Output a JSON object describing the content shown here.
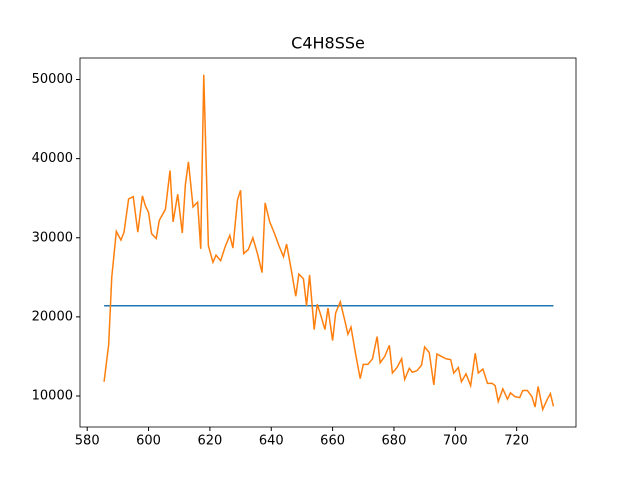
{
  "chart_data": {
    "type": "line",
    "title": "C4H8SSe",
    "xlim": [
      577.65,
      739.35
    ],
    "ylim": [
      6080,
      52720
    ],
    "xticks": [
      580,
      600,
      620,
      640,
      660,
      680,
      700,
      720
    ],
    "yticks": [
      10000,
      20000,
      30000,
      40000,
      50000
    ],
    "series": [
      {
        "color": "#1f77b4",
        "x": [
          585.5,
          732
        ],
        "values": [
          21400,
          21400
        ]
      },
      {
        "color": "#ff7f0e",
        "x": [
          585.5,
          587,
          588,
          589.5,
          591,
          592,
          593.5,
          595,
          596.5,
          598,
          599,
          600,
          601,
          602.5,
          603.5,
          605.5,
          607,
          608,
          609.5,
          611,
          612,
          613,
          614.5,
          616,
          617,
          618,
          619.5,
          621,
          622,
          623.5,
          625,
          626.5,
          627.5,
          629,
          630,
          631,
          632.5,
          634,
          635.5,
          637,
          638,
          639.5,
          641,
          642.5,
          644,
          645,
          646.5,
          648,
          649,
          650.5,
          651.5,
          652.5,
          654,
          655,
          656,
          657.5,
          658.5,
          660,
          661,
          662.5,
          664,
          665,
          666,
          667.5,
          669,
          670,
          671.5,
          673,
          674.5,
          675.5,
          677,
          678.5,
          679.5,
          681,
          682.5,
          683.5,
          685,
          686,
          687.5,
          689,
          690,
          691.5,
          693,
          694,
          695.5,
          697,
          698.5,
          699.5,
          701,
          702,
          703.5,
          705,
          706.5,
          707.5,
          709,
          710.5,
          712,
          713,
          714,
          715.5,
          717,
          718,
          719.5,
          721,
          722,
          723.5,
          725,
          726,
          727,
          728.5,
          730,
          731,
          732
        ],
        "values": [
          11800,
          16500,
          25000,
          30800,
          29700,
          30700,
          34900,
          35200,
          30700,
          35300,
          34000,
          33200,
          30500,
          29900,
          32200,
          33600,
          38500,
          32000,
          35500,
          30600,
          36700,
          39600,
          33900,
          34500,
          28600,
          50600,
          29000,
          26900,
          27800,
          27100,
          28900,
          30300,
          28700,
          34800,
          36000,
          28000,
          28500,
          30000,
          28000,
          25600,
          34400,
          32000,
          30600,
          29000,
          27600,
          29200,
          26000,
          22600,
          25400,
          24800,
          21400,
          25300,
          18400,
          21600,
          20400,
          18400,
          21100,
          17000,
          20500,
          21900,
          19500,
          17800,
          18700,
          15300,
          12200,
          14000,
          14000,
          14700,
          17500,
          14200,
          15000,
          16400,
          12900,
          13600,
          14700,
          12100,
          13500,
          13000,
          13200,
          13900,
          16200,
          15500,
          11400,
          15300,
          15000,
          14700,
          14600,
          12900,
          13600,
          11800,
          12800,
          11300,
          15400,
          12900,
          13400,
          11600,
          11600,
          11300,
          9300,
          10900,
          9600,
          10400,
          9900,
          9800,
          10700,
          10700,
          9900,
          8600,
          11200,
          8300,
          9600,
          10300,
          8700
        ]
      }
    ]
  }
}
